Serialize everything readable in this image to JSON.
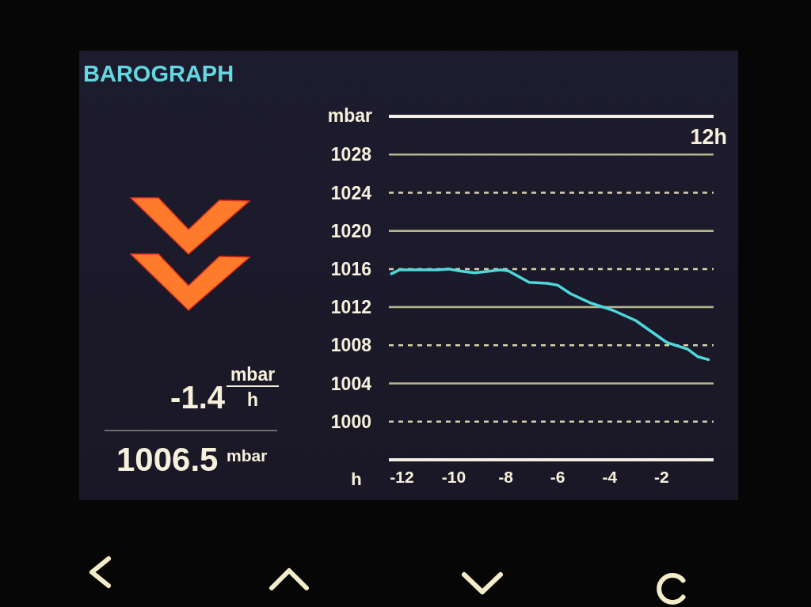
{
  "chart_data": {
    "type": "line",
    "title": "BAROGRAPH",
    "xlabel": "h",
    "ylabel": "mbar",
    "x": [
      -12.4,
      -12.1,
      -10.6,
      -10.2,
      -9.8,
      -9.2,
      -8.2,
      -7.9,
      -7.1,
      -6.4,
      -6.0,
      -5.5,
      -4.7,
      -3.9,
      -3.0,
      -1.8,
      -1.0,
      -0.6,
      -0.2
    ],
    "values": [
      1015.5,
      1015.9,
      1015.9,
      1016.0,
      1015.8,
      1015.6,
      1015.9,
      1015.8,
      1014.6,
      1014.5,
      1014.3,
      1013.4,
      1012.4,
      1011.7,
      1010.6,
      1008.3,
      1007.6,
      1006.8,
      1006.5
    ],
    "color": "#4fd8dc",
    "xlim": [
      -12.5,
      0
    ],
    "xticks": [
      -12,
      -10,
      -8,
      -6,
      -4,
      -2
    ],
    "ylim": [
      996,
      1032
    ],
    "yticks": [
      1000,
      1004,
      1008,
      1012,
      1016,
      1020,
      1024,
      1028
    ],
    "grid": "y",
    "marker": "none",
    "line_style": "solid",
    "annotations": [
      "12h",
      "-1.4",
      "mbar",
      "h",
      "1006.5",
      "mbar"
    ]
  }
}
